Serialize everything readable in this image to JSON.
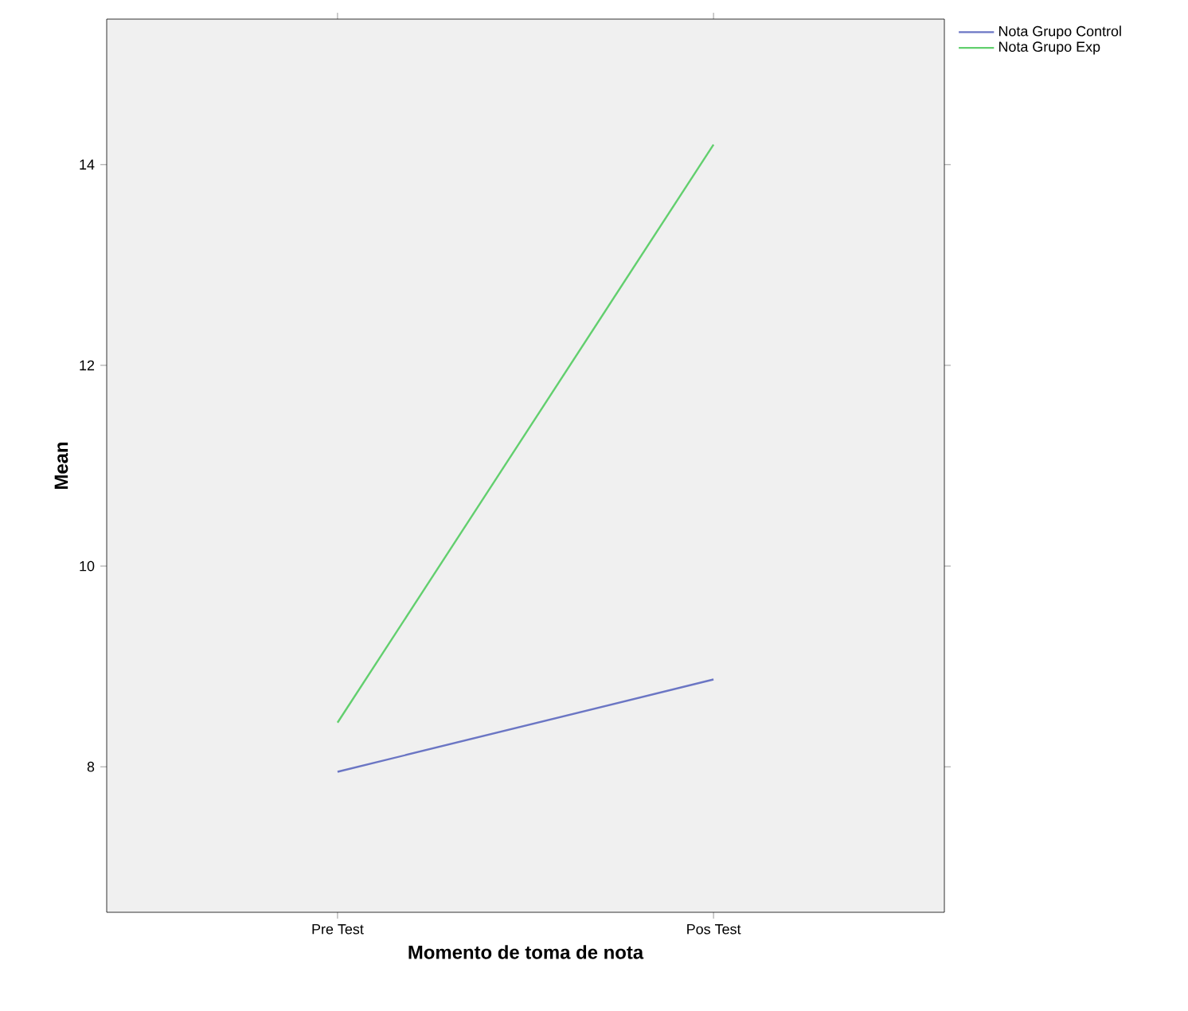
{
  "chart_data": {
    "type": "line",
    "xlabel": "Momento de toma de nota",
    "ylabel": "Mean",
    "categories": [
      "Pre Test",
      "Pos Test"
    ],
    "series": [
      {
        "name": "Nota Grupo Control",
        "color": "#6b76c4",
        "values": [
          7.95,
          8.87
        ]
      },
      {
        "name": "Nota Grupo Exp",
        "color": "#62cf6e",
        "values": [
          8.44,
          14.2
        ]
      }
    ],
    "ylim": [
      6.55,
      15.45
    ],
    "yticks": [
      8,
      10,
      12,
      14
    ],
    "legend": "top right"
  }
}
